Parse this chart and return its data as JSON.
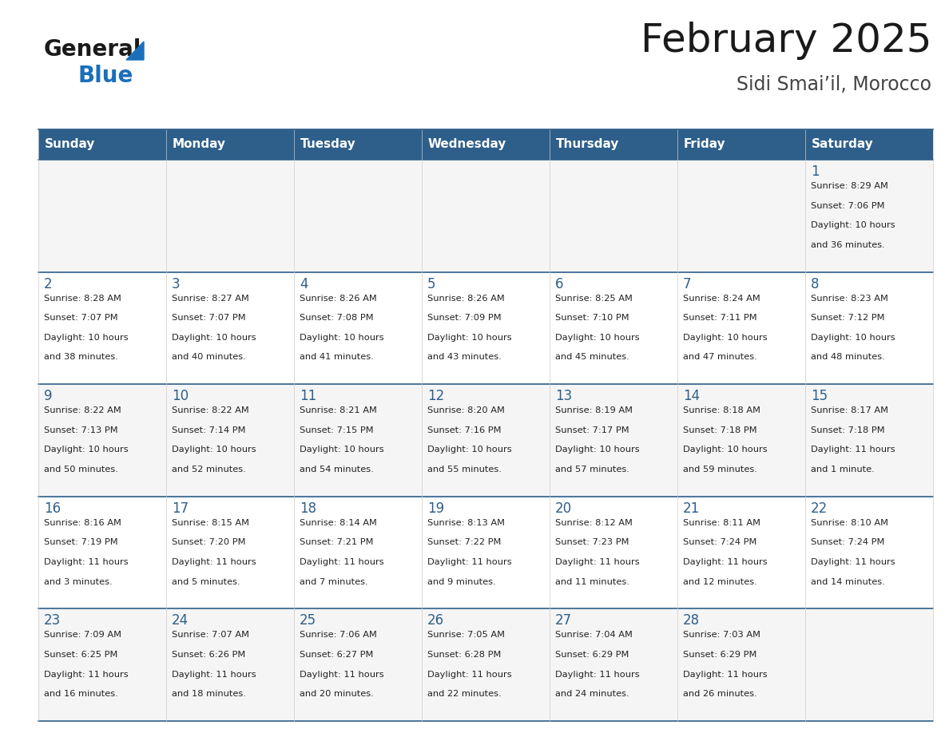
{
  "title": "February 2025",
  "subtitle": "Sidi Smai’il, Morocco",
  "header_bg": "#2e5f8a",
  "header_text_color": "#ffffff",
  "row_bg_odd": "#f5f5f5",
  "row_bg_even": "#ffffff",
  "cell_border_color": "#2e5f8a",
  "cell_border_light": "#cccccc",
  "title_color": "#1a1a1a",
  "subtitle_color": "#444444",
  "day_number_color": "#2e5f8a",
  "info_color": "#222222",
  "logo_general_color": "#1a1a1a",
  "logo_blue_color": "#1a6fba",
  "logo_triangle_color": "#1a6fba",
  "days_of_week": [
    "Sunday",
    "Monday",
    "Tuesday",
    "Wednesday",
    "Thursday",
    "Friday",
    "Saturday"
  ],
  "weeks": [
    [
      {
        "day": null
      },
      {
        "day": null
      },
      {
        "day": null
      },
      {
        "day": null
      },
      {
        "day": null
      },
      {
        "day": null
      },
      {
        "day": 1,
        "sunrise": "8:29 AM",
        "sunset": "7:06 PM",
        "daylight": "10 hours and 36 minutes."
      }
    ],
    [
      {
        "day": 2,
        "sunrise": "8:28 AM",
        "sunset": "7:07 PM",
        "daylight": "10 hours and 38 minutes."
      },
      {
        "day": 3,
        "sunrise": "8:27 AM",
        "sunset": "7:07 PM",
        "daylight": "10 hours and 40 minutes."
      },
      {
        "day": 4,
        "sunrise": "8:26 AM",
        "sunset": "7:08 PM",
        "daylight": "10 hours and 41 minutes."
      },
      {
        "day": 5,
        "sunrise": "8:26 AM",
        "sunset": "7:09 PM",
        "daylight": "10 hours and 43 minutes."
      },
      {
        "day": 6,
        "sunrise": "8:25 AM",
        "sunset": "7:10 PM",
        "daylight": "10 hours and 45 minutes."
      },
      {
        "day": 7,
        "sunrise": "8:24 AM",
        "sunset": "7:11 PM",
        "daylight": "10 hours and 47 minutes."
      },
      {
        "day": 8,
        "sunrise": "8:23 AM",
        "sunset": "7:12 PM",
        "daylight": "10 hours and 48 minutes."
      }
    ],
    [
      {
        "day": 9,
        "sunrise": "8:22 AM",
        "sunset": "7:13 PM",
        "daylight": "10 hours and 50 minutes."
      },
      {
        "day": 10,
        "sunrise": "8:22 AM",
        "sunset": "7:14 PM",
        "daylight": "10 hours and 52 minutes."
      },
      {
        "day": 11,
        "sunrise": "8:21 AM",
        "sunset": "7:15 PM",
        "daylight": "10 hours and 54 minutes."
      },
      {
        "day": 12,
        "sunrise": "8:20 AM",
        "sunset": "7:16 PM",
        "daylight": "10 hours and 55 minutes."
      },
      {
        "day": 13,
        "sunrise": "8:19 AM",
        "sunset": "7:17 PM",
        "daylight": "10 hours and 57 minutes."
      },
      {
        "day": 14,
        "sunrise": "8:18 AM",
        "sunset": "7:18 PM",
        "daylight": "10 hours and 59 minutes."
      },
      {
        "day": 15,
        "sunrise": "8:17 AM",
        "sunset": "7:18 PM",
        "daylight": "11 hours and 1 minute."
      }
    ],
    [
      {
        "day": 16,
        "sunrise": "8:16 AM",
        "sunset": "7:19 PM",
        "daylight": "11 hours and 3 minutes."
      },
      {
        "day": 17,
        "sunrise": "8:15 AM",
        "sunset": "7:20 PM",
        "daylight": "11 hours and 5 minutes."
      },
      {
        "day": 18,
        "sunrise": "8:14 AM",
        "sunset": "7:21 PM",
        "daylight": "11 hours and 7 minutes."
      },
      {
        "day": 19,
        "sunrise": "8:13 AM",
        "sunset": "7:22 PM",
        "daylight": "11 hours and 9 minutes."
      },
      {
        "day": 20,
        "sunrise": "8:12 AM",
        "sunset": "7:23 PM",
        "daylight": "11 hours and 11 minutes."
      },
      {
        "day": 21,
        "sunrise": "8:11 AM",
        "sunset": "7:24 PM",
        "daylight": "11 hours and 12 minutes."
      },
      {
        "day": 22,
        "sunrise": "8:10 AM",
        "sunset": "7:24 PM",
        "daylight": "11 hours and 14 minutes."
      }
    ],
    [
      {
        "day": 23,
        "sunrise": "7:09 AM",
        "sunset": "6:25 PM",
        "daylight": "11 hours and 16 minutes."
      },
      {
        "day": 24,
        "sunrise": "7:07 AM",
        "sunset": "6:26 PM",
        "daylight": "11 hours and 18 minutes."
      },
      {
        "day": 25,
        "sunrise": "7:06 AM",
        "sunset": "6:27 PM",
        "daylight": "11 hours and 20 minutes."
      },
      {
        "day": 26,
        "sunrise": "7:05 AM",
        "sunset": "6:28 PM",
        "daylight": "11 hours and 22 minutes."
      },
      {
        "day": 27,
        "sunrise": "7:04 AM",
        "sunset": "6:29 PM",
        "daylight": "11 hours and 24 minutes."
      },
      {
        "day": 28,
        "sunrise": "7:03 AM",
        "sunset": "6:29 PM",
        "daylight": "11 hours and 26 minutes."
      },
      {
        "day": null
      }
    ]
  ]
}
